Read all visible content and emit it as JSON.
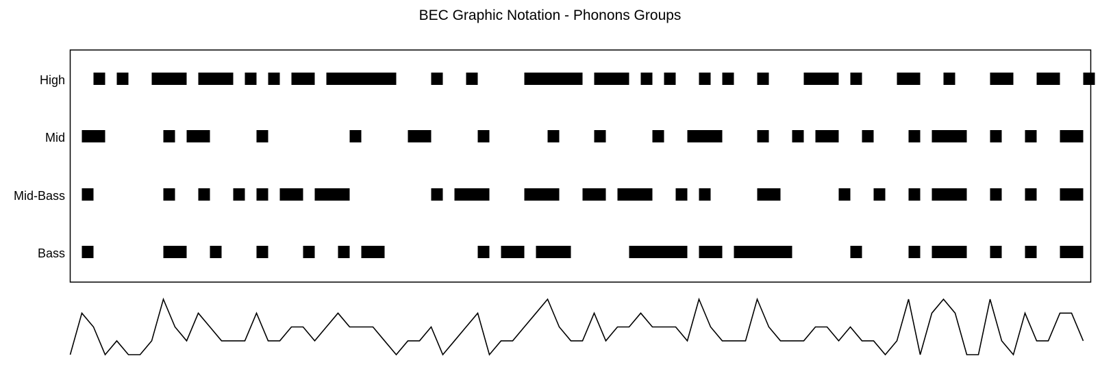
{
  "chart_data": {
    "type": "graphic-notation",
    "title": "BEC Graphic Notation - Phonons Groups",
    "xlim": [
      0,
      88
    ],
    "rows": [
      {
        "label": "High",
        "bars": [
          [
            2,
            3
          ],
          [
            4,
            5
          ],
          [
            7,
            10
          ],
          [
            11,
            14
          ],
          [
            15,
            16
          ],
          [
            17,
            18
          ],
          [
            19,
            21
          ],
          [
            22,
            28
          ],
          [
            31,
            32
          ],
          [
            34,
            35
          ],
          [
            39,
            44
          ],
          [
            45,
            48
          ],
          [
            49,
            50
          ],
          [
            51,
            52
          ],
          [
            54,
            55
          ],
          [
            56,
            57
          ],
          [
            59,
            60
          ],
          [
            63,
            66
          ],
          [
            67,
            68
          ],
          [
            71,
            73
          ],
          [
            75,
            76
          ],
          [
            79,
            81
          ],
          [
            83,
            85
          ],
          [
            87,
            88
          ]
        ]
      },
      {
        "label": "Mid",
        "bars": [
          [
            1,
            3
          ],
          [
            8,
            9
          ],
          [
            10,
            12
          ],
          [
            16,
            17
          ],
          [
            24,
            25
          ],
          [
            29,
            31
          ],
          [
            35,
            36
          ],
          [
            41,
            42
          ],
          [
            45,
            46
          ],
          [
            50,
            51
          ],
          [
            53,
            56
          ],
          [
            59,
            60
          ],
          [
            62,
            63
          ],
          [
            64,
            66
          ],
          [
            68,
            69
          ],
          [
            72,
            73
          ],
          [
            74,
            77
          ],
          [
            79,
            80
          ],
          [
            82,
            83
          ],
          [
            85,
            87
          ]
        ]
      },
      {
        "label": "Mid-Bass",
        "bars": [
          [
            1,
            2
          ],
          [
            8,
            9
          ],
          [
            11,
            12
          ],
          [
            14,
            15
          ],
          [
            16,
            17
          ],
          [
            18,
            20
          ],
          [
            21,
            24
          ],
          [
            31,
            32
          ],
          [
            33,
            36
          ],
          [
            39,
            42
          ],
          [
            44,
            46
          ],
          [
            47,
            50
          ],
          [
            52,
            53
          ],
          [
            54,
            55
          ],
          [
            59,
            61
          ],
          [
            66,
            67
          ],
          [
            69,
            70
          ],
          [
            72,
            73
          ],
          [
            74,
            77
          ],
          [
            79,
            80
          ],
          [
            82,
            83
          ],
          [
            85,
            87
          ]
        ]
      },
      {
        "label": "Bass",
        "bars": [
          [
            1,
            2
          ],
          [
            8,
            10
          ],
          [
            12,
            13
          ],
          [
            16,
            17
          ],
          [
            20,
            21
          ],
          [
            23,
            24
          ],
          [
            25,
            27
          ],
          [
            35,
            36
          ],
          [
            37,
            39
          ],
          [
            40,
            43
          ],
          [
            48,
            53
          ],
          [
            54,
            56
          ],
          [
            57,
            62
          ],
          [
            67,
            68
          ],
          [
            72,
            73
          ],
          [
            74,
            77
          ],
          [
            79,
            80
          ],
          [
            82,
            83
          ],
          [
            85,
            87
          ]
        ]
      }
    ],
    "contour": {
      "x": [
        0,
        1,
        2,
        3,
        4,
        5,
        6,
        7,
        8,
        9,
        10,
        11,
        12,
        13,
        14,
        15,
        16,
        17,
        18,
        19,
        20,
        21,
        22,
        23,
        24,
        25,
        26,
        27,
        28,
        29,
        30,
        31,
        32,
        33,
        34,
        35,
        36,
        37,
        38,
        39,
        40,
        41,
        42,
        43,
        44,
        45,
        46,
        47,
        48,
        49,
        50,
        51,
        52,
        53,
        54,
        55,
        56,
        57,
        58,
        59,
        60,
        61,
        62,
        63,
        64,
        65,
        66,
        67,
        68,
        69,
        70,
        71,
        72,
        73,
        74,
        75,
        76,
        77,
        78,
        79,
        80,
        81,
        82,
        83,
        84,
        85,
        86,
        87
      ],
      "y": [
        0,
        3,
        2,
        0,
        1,
        0,
        0,
        1,
        4,
        2,
        1,
        3,
        2,
        1,
        1,
        1,
        3,
        1,
        1,
        2,
        2,
        1,
        2,
        3,
        2,
        2,
        2,
        1,
        0,
        1,
        1,
        2,
        0,
        1,
        2,
        3,
        0,
        1,
        1,
        2,
        3,
        4,
        2,
        1,
        1,
        3,
        1,
        2,
        2,
        3,
        2,
        2,
        2,
        1,
        4,
        2,
        1,
        1,
        1,
        4,
        2,
        1,
        1,
        1,
        2,
        2,
        1,
        2,
        1,
        1,
        0,
        1,
        4,
        0,
        3,
        4,
        3,
        0,
        0,
        4,
        1,
        0,
        3,
        1,
        1,
        3,
        3,
        1
      ]
    }
  }
}
